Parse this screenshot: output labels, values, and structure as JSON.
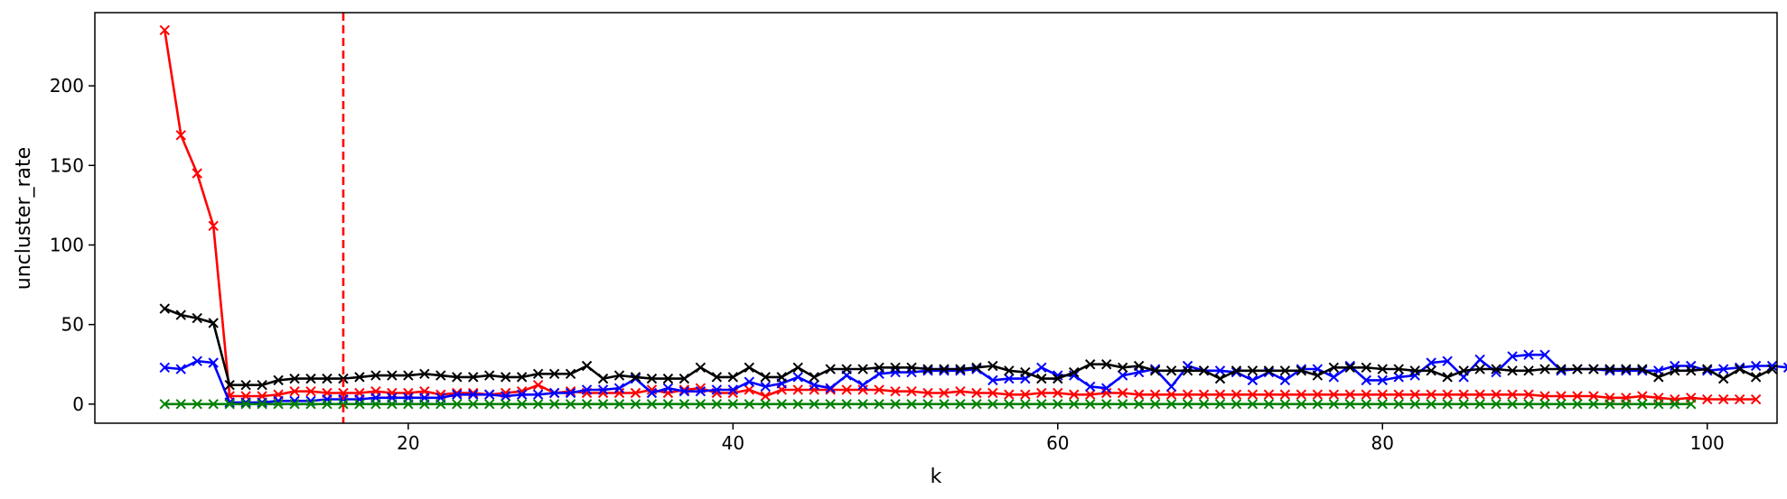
{
  "chart_data": {
    "type": "line",
    "title": "",
    "xlabel": "k",
    "ylabel": "uncluster_rate",
    "xlim": [
      0.7,
      104.3
    ],
    "ylim": [
      -12,
      246
    ],
    "xticks": [
      20,
      40,
      60,
      80,
      100
    ],
    "yticks": [
      0,
      50,
      100,
      150,
      200
    ],
    "grid": false,
    "legend": "none",
    "marker": "x",
    "reference_lines": [
      {
        "orientation": "vertical",
        "x": 16,
        "color": "#ff0000",
        "style": "dashed"
      }
    ],
    "x_start": 5,
    "series": [
      {
        "color": "#ff0000",
        "values": [
          235,
          169,
          145,
          112,
          5,
          5,
          5,
          6,
          8,
          8,
          7,
          7,
          7,
          8,
          7,
          7,
          8,
          6,
          7,
          7,
          6,
          7,
          8,
          12,
          7,
          8,
          7,
          7,
          7,
          7,
          9,
          7,
          9,
          10,
          7,
          7,
          9,
          5,
          9,
          9,
          9,
          9,
          9,
          9,
          9,
          8,
          8,
          7,
          7,
          8,
          7,
          7,
          6,
          6,
          7,
          7,
          6,
          6,
          7,
          7,
          6,
          6,
          6,
          6,
          6,
          6,
          6,
          6,
          6,
          6,
          6,
          6,
          6,
          6,
          6,
          6,
          6,
          6,
          6,
          6,
          6,
          6,
          6,
          6,
          6,
          5,
          5,
          5,
          5,
          4,
          4,
          5,
          4,
          3,
          4,
          3,
          3,
          3,
          3
        ]
      },
      {
        "color": "#0000ff",
        "values": [
          23,
          22,
          27,
          26,
          1,
          1,
          1,
          2,
          2,
          2,
          3,
          3,
          3,
          4,
          4,
          4,
          4,
          4,
          6,
          6,
          6,
          5,
          6,
          6,
          7,
          7,
          9,
          9,
          10,
          16,
          7,
          10,
          8,
          8,
          9,
          9,
          14,
          11,
          13,
          17,
          12,
          10,
          18,
          12,
          19,
          20,
          20,
          21,
          21,
          21,
          22,
          15,
          16,
          16,
          23,
          18,
          18,
          11,
          10,
          18,
          20,
          22,
          11,
          24,
          21,
          21,
          20,
          15,
          20,
          15,
          22,
          22,
          17,
          24,
          15,
          15,
          17,
          18,
          26,
          27,
          17,
          28,
          20,
          30,
          31,
          31,
          21,
          22,
          22,
          21,
          21,
          21,
          21,
          24,
          24,
          21,
          22,
          23,
          24,
          24,
          23,
          23,
          21
        ]
      },
      {
        "color": "#000000",
        "values": [
          60,
          56,
          54,
          51,
          12,
          12,
          12,
          15,
          16,
          16,
          16,
          16,
          17,
          18,
          18,
          18,
          19,
          18,
          17,
          17,
          18,
          17,
          17,
          19,
          19,
          19,
          24,
          16,
          18,
          17,
          16,
          16,
          16,
          23,
          17,
          17,
          23,
          17,
          17,
          23,
          17,
          22,
          22,
          22,
          23,
          23,
          23,
          22,
          22,
          22,
          23,
          24,
          21,
          20,
          16,
          16,
          20,
          25,
          25,
          23,
          24,
          21,
          21,
          21,
          21,
          16,
          21,
          21,
          21,
          21,
          21,
          18,
          23,
          23,
          23,
          22,
          22,
          21,
          21,
          17,
          21,
          22,
          22,
          21,
          21,
          22,
          22,
          22,
          22,
          22,
          22,
          22,
          17,
          21,
          21,
          22,
          16,
          22,
          17,
          22
        ]
      },
      {
        "color": "#008000",
        "values": [
          0,
          0,
          0,
          0,
          0,
          0,
          0,
          0,
          0,
          0,
          0,
          0,
          0,
          0,
          0,
          0,
          0,
          0,
          0,
          0,
          0,
          0,
          0,
          0,
          0,
          0,
          0,
          0,
          0,
          0,
          0,
          0,
          0,
          0,
          0,
          0,
          0,
          0,
          0,
          0,
          0,
          0,
          0,
          0,
          0,
          0,
          0,
          0,
          0,
          0,
          0,
          0,
          0,
          0,
          0,
          0,
          0,
          0,
          0,
          0,
          0,
          0,
          0,
          0,
          0,
          0,
          0,
          0,
          0,
          0,
          0,
          0,
          0,
          0,
          0,
          0,
          0,
          0,
          0,
          0,
          0,
          0,
          0,
          0,
          0,
          0,
          0,
          0,
          0,
          0,
          0,
          0,
          0,
          0,
          0
        ]
      }
    ]
  }
}
